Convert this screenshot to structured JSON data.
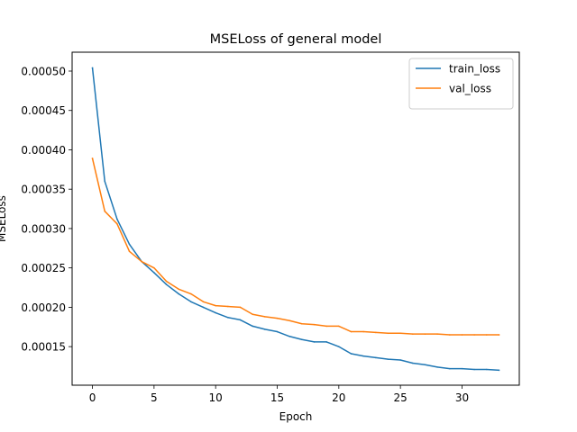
{
  "chart_data": {
    "type": "line",
    "title": "MSELoss of general model",
    "xlabel": "Epoch",
    "ylabel": "MSELoss",
    "xlim": [
      -1.65,
      34.65
    ],
    "ylim": [
      0.000101,
      0.000524
    ],
    "xticks": [
      0,
      5,
      10,
      15,
      20,
      25,
      30
    ],
    "xtick_labels": [
      "0",
      "5",
      "10",
      "15",
      "20",
      "25",
      "30"
    ],
    "yticks": [
      0.00015,
      0.0002,
      0.00025,
      0.0003,
      0.00035,
      0.0004,
      0.00045,
      0.0005
    ],
    "ytick_labels": [
      "0.00015",
      "0.00020",
      "0.00025",
      "0.00030",
      "0.00035",
      "0.00040",
      "0.00045",
      "0.00050"
    ],
    "grid": false,
    "legend_position": "top-right",
    "x": [
      0,
      1,
      2,
      3,
      4,
      5,
      6,
      7,
      8,
      9,
      10,
      11,
      12,
      13,
      14,
      15,
      16,
      17,
      18,
      19,
      20,
      21,
      22,
      23,
      24,
      25,
      26,
      27,
      28,
      29,
      30,
      31,
      32,
      33
    ],
    "series": [
      {
        "name": "train_loss",
        "color": "#1f77b4",
        "values": [
          0.000504,
          0.00036,
          0.000312,
          0.00028,
          0.000258,
          0.000244,
          0.000229,
          0.000217,
          0.000207,
          0.0002,
          0.000193,
          0.000187,
          0.000184,
          0.000176,
          0.000172,
          0.000169,
          0.000163,
          0.000159,
          0.000156,
          0.000156,
          0.00015,
          0.000141,
          0.000138,
          0.000136,
          0.000134,
          0.000133,
          0.000129,
          0.000127,
          0.000124,
          0.000122,
          0.000122,
          0.000121,
          0.000121,
          0.00012
        ]
      },
      {
        "name": "val_loss",
        "color": "#ff7f0e",
        "values": [
          0.000389,
          0.000322,
          0.000306,
          0.000271,
          0.000258,
          0.00025,
          0.000233,
          0.000223,
          0.000217,
          0.000207,
          0.000202,
          0.000201,
          0.0002,
          0.000191,
          0.000188,
          0.000186,
          0.000183,
          0.000179,
          0.000178,
          0.000176,
          0.000176,
          0.000169,
          0.000169,
          0.000168,
          0.000167,
          0.000167,
          0.000166,
          0.000166,
          0.000166,
          0.000165,
          0.000165,
          0.000165,
          0.000165,
          0.000165
        ]
      }
    ]
  }
}
